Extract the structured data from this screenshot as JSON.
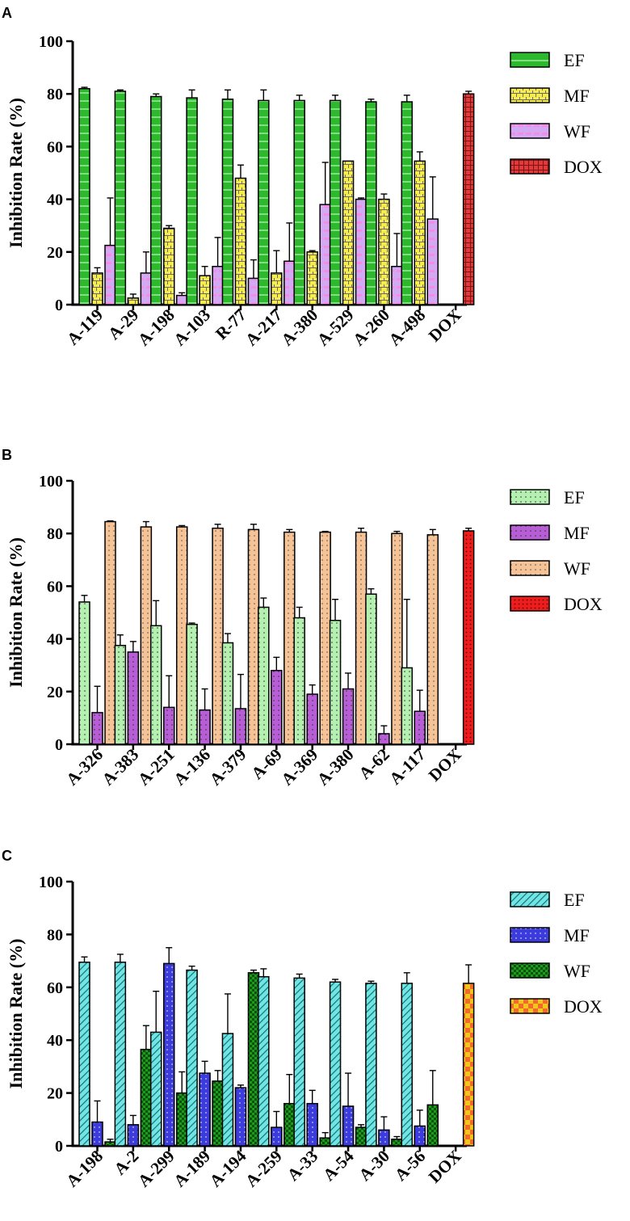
{
  "chart_data": [
    {
      "type": "bar",
      "panel": "A",
      "ylabel": "Inhibition Rate (%)",
      "ylim": [
        0,
        100
      ],
      "yticks": [
        0,
        20,
        40,
        60,
        80,
        100
      ],
      "categories": [
        "A-119",
        "A-29",
        "A-198",
        "A-103",
        "R-77",
        "A-217",
        "A-380",
        "A-529",
        "A-260",
        "A-498",
        "DOX"
      ],
      "series": [
        {
          "name": "EF",
          "color": "#2db82d",
          "pattern": "hlines",
          "values": [
            82,
            81,
            79,
            78.5,
            78,
            77.5,
            77.5,
            77.5,
            77,
            77,
            null
          ],
          "errors": [
            0.5,
            0.5,
            1,
            3,
            3.5,
            4,
            2,
            2,
            1,
            2.5,
            null
          ]
        },
        {
          "name": "MF",
          "color": "#f7ec4d",
          "pattern": "brick",
          "values": [
            12,
            2.5,
            29,
            11,
            48,
            12,
            20,
            54.5,
            40,
            54.5,
            null
          ],
          "errors": [
            2,
            1.5,
            1,
            3.5,
            5,
            8.5,
            0.5,
            0,
            2,
            3.5,
            null
          ]
        },
        {
          "name": "WF",
          "color": "#d3a9f4",
          "pattern": "pinkdash",
          "values": [
            22.5,
            12,
            3.5,
            14.5,
            10,
            16.5,
            38,
            40,
            14.5,
            32.5,
            null
          ],
          "errors": [
            18,
            8,
            1,
            11,
            7,
            14.5,
            16,
            0.5,
            12.5,
            16,
            null
          ]
        },
        {
          "name": "DOX",
          "color": "#e23a3a",
          "pattern": "grid",
          "values": [
            null,
            null,
            null,
            null,
            null,
            null,
            null,
            null,
            null,
            null,
            80
          ],
          "errors": [
            null,
            null,
            null,
            null,
            null,
            null,
            null,
            null,
            null,
            null,
            1
          ]
        }
      ]
    },
    {
      "type": "bar",
      "panel": "B",
      "ylabel": "Inhibition Rate (%)",
      "ylim": [
        0,
        100
      ],
      "yticks": [
        0,
        20,
        40,
        60,
        80,
        100
      ],
      "categories": [
        "A-326",
        "A-383",
        "A-251",
        "A-136",
        "A-379",
        "A-69",
        "A-369",
        "A-380",
        "A-62",
        "A-117",
        "DOX"
      ],
      "series": [
        {
          "name": "EF",
          "color": "#b4f0b0",
          "pattern": "dots",
          "values": [
            54,
            37.5,
            45,
            45.5,
            38.5,
            52,
            48,
            47,
            57,
            29,
            null
          ],
          "errors": [
            2.5,
            4,
            9.5,
            0.5,
            3.5,
            3.5,
            4,
            8,
            2,
            26,
            null
          ]
        },
        {
          "name": "MF",
          "color": "#b75ed6",
          "pattern": "dots",
          "values": [
            12,
            35,
            14,
            13,
            13.5,
            28,
            19,
            21,
            4,
            12.5,
            null
          ],
          "errors": [
            10,
            4,
            12,
            8,
            13,
            5,
            3.5,
            6,
            3,
            8,
            null
          ]
        },
        {
          "name": "WF",
          "color": "#f5c396",
          "pattern": "dots",
          "values": [
            84.5,
            82.5,
            82.5,
            82,
            81.5,
            80.5,
            80.5,
            80.5,
            80,
            79.5,
            null
          ],
          "errors": [
            0.3,
            2,
            0.5,
            1.5,
            2,
            1,
            0.3,
            1.5,
            0.8,
            2,
            null
          ]
        },
        {
          "name": "DOX",
          "color": "#ee1c1c",
          "pattern": "dots",
          "values": [
            null,
            null,
            null,
            null,
            null,
            null,
            null,
            null,
            null,
            null,
            81
          ],
          "errors": [
            null,
            null,
            null,
            null,
            null,
            null,
            null,
            null,
            null,
            null,
            1
          ]
        }
      ]
    },
    {
      "type": "bar",
      "panel": "C",
      "ylabel": "Inhibition Rate (%)",
      "ylim": [
        0,
        100
      ],
      "yticks": [
        0,
        20,
        40,
        60,
        80,
        100
      ],
      "categories": [
        "A-198",
        "A-2",
        "A-299",
        "A-189",
        "A-194",
        "A-259",
        "A-33",
        "A-54",
        "A-30",
        "A-56",
        "DOX"
      ],
      "series": [
        {
          "name": "EF",
          "color": "#6fe6e6",
          "pattern": "diag",
          "values": [
            69.5,
            69.5,
            43,
            66.5,
            42.5,
            64,
            63.5,
            62,
            61.5,
            61.5,
            null
          ],
          "errors": [
            2,
            3,
            15.5,
            1.5,
            15,
            3,
            1.5,
            1,
            0.8,
            4,
            null
          ]
        },
        {
          "name": "MF",
          "color": "#3c3cdc",
          "pattern": "dots",
          "values": [
            9,
            8,
            69,
            27.5,
            22,
            7,
            16,
            15,
            6,
            7.5,
            null
          ],
          "errors": [
            8,
            3.5,
            6,
            4.5,
            1,
            6,
            5,
            12.5,
            5,
            6,
            null
          ]
        },
        {
          "name": "WF",
          "color": "#1a9e1a",
          "pattern": "check",
          "values": [
            1.5,
            36.5,
            20,
            24.5,
            65.5,
            16,
            3,
            7,
            2.5,
            15.5,
            null
          ],
          "errors": [
            1,
            9,
            8,
            4,
            1,
            11,
            2,
            1,
            1,
            13,
            null
          ]
        },
        {
          "name": "DOX",
          "color": "#f2c61c",
          "pattern": "bigcheck",
          "values": [
            null,
            null,
            null,
            null,
            null,
            null,
            null,
            null,
            null,
            null,
            61.5
          ],
          "errors": [
            null,
            null,
            null,
            null,
            null,
            null,
            null,
            null,
            null,
            null,
            7
          ]
        }
      ]
    }
  ]
}
